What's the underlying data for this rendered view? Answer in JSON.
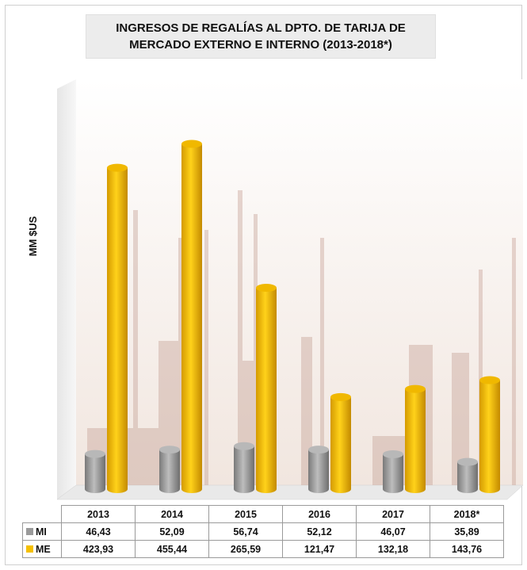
{
  "chart_data": {
    "type": "bar",
    "title": "INGRESOS DE REGALÍAS AL DPTO. DE TARIJA DE\nMERCADO EXTERNO E INTERNO (2013-2018*)",
    "ylabel": "MM $US",
    "categories": [
      "2013",
      "2014",
      "2015",
      "2016",
      "2017",
      "2018*"
    ],
    "series": [
      {
        "name": "MI",
        "color": "#9a9a9a",
        "values": [
          "46,43",
          "52,09",
          "56,74",
          "52,12",
          "46,07",
          "35,89"
        ],
        "numeric": [
          46.43,
          52.09,
          56.74,
          52.12,
          46.07,
          35.89
        ]
      },
      {
        "name": "ME",
        "color": "#f5c000",
        "values": [
          "423,93",
          "455,44",
          "265,59",
          "121,47",
          "132,18",
          "143,76"
        ],
        "numeric": [
          423.93,
          455.44,
          265.59,
          121.47,
          132.18,
          143.76
        ]
      }
    ],
    "ylim": [
      0,
      480
    ],
    "grid": false,
    "legend": "data-table"
  }
}
